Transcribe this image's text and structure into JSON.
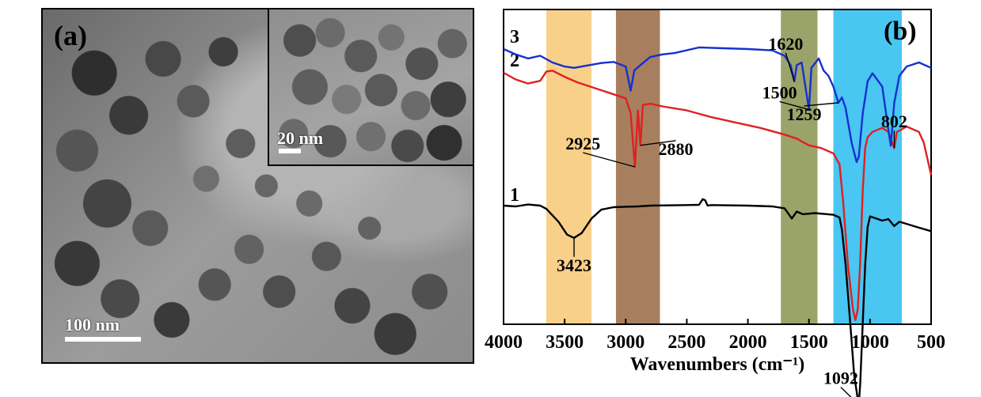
{
  "panel_a": {
    "label": "(a)",
    "scale_bar_main": "100 nm",
    "scale_bar_inset": "20 nm"
  },
  "chart_data": {
    "type": "line",
    "panel_label": "(b)",
    "title": "",
    "xlabel": "Wavenumbers (cm⁻¹)",
    "ylabel": "",
    "x_reversed": true,
    "xlim": [
      4000,
      500
    ],
    "xticks": [
      4000,
      3500,
      3000,
      2500,
      2000,
      1500,
      1000,
      500
    ],
    "xtick_labels": [
      "4000",
      "3500",
      "3000",
      "2500",
      "2000",
      "1500",
      "1000",
      "500"
    ],
    "grid": false,
    "highlight_bands": [
      {
        "from": 3650,
        "to": 3280,
        "color": "#F8D08A"
      },
      {
        "from": 3080,
        "to": 2720,
        "color": "#A87F5E"
      },
      {
        "from": 1730,
        "to": 1430,
        "color": "#9AA36A"
      },
      {
        "from": 1300,
        "to": 740,
        "color": "#49C6F2"
      }
    ],
    "series": [
      {
        "name": "1",
        "color": "#000000",
        "points": [
          [
            4000,
            0.0
          ],
          [
            3900,
            -0.3
          ],
          [
            3800,
            0.4
          ],
          [
            3700,
            0.0
          ],
          [
            3650,
            -1.2
          ],
          [
            3550,
            -6.0
          ],
          [
            3480,
            -10.8
          ],
          [
            3423,
            -12.0
          ],
          [
            3360,
            -10.2
          ],
          [
            3280,
            -4.8
          ],
          [
            3200,
            -1.5
          ],
          [
            3100,
            -0.6
          ],
          [
            3000,
            -0.4
          ],
          [
            2900,
            -0.3
          ],
          [
            2800,
            0.0
          ],
          [
            2500,
            0.2
          ],
          [
            2400,
            0.3
          ],
          [
            2370,
            2.4
          ],
          [
            2350,
            2.0
          ],
          [
            2330,
            0.0
          ],
          [
            2300,
            0.2
          ],
          [
            2000,
            0.0
          ],
          [
            1800,
            -0.3
          ],
          [
            1700,
            -1.0
          ],
          [
            1640,
            -4.8
          ],
          [
            1600,
            -2.2
          ],
          [
            1550,
            -3.2
          ],
          [
            1450,
            -2.8
          ],
          [
            1300,
            -3.4
          ],
          [
            1250,
            -4.4
          ],
          [
            1230,
            -9.0
          ],
          [
            1200,
            -22.0
          ],
          [
            1160,
            -45.0
          ],
          [
            1130,
            -63.0
          ],
          [
            1100,
            -72.0
          ],
          [
            1092,
            -74.0
          ],
          [
            1080,
            -66.0
          ],
          [
            1060,
            -44.0
          ],
          [
            1040,
            -22.0
          ],
          [
            1020,
            -8.0
          ],
          [
            1000,
            -4.0
          ],
          [
            950,
            -4.8
          ],
          [
            900,
            -5.6
          ],
          [
            850,
            -5.0
          ],
          [
            802,
            -7.6
          ],
          [
            760,
            -6.0
          ],
          [
            700,
            -6.8
          ],
          [
            600,
            -8.2
          ],
          [
            500,
            -9.5
          ]
        ],
        "curve_label_offset": [
          8,
          -6
        ]
      },
      {
        "name": "2",
        "color": "#E02020",
        "points": [
          [
            4000,
            0.0
          ],
          [
            3900,
            -2.5
          ],
          [
            3800,
            -4.0
          ],
          [
            3700,
            -3.0
          ],
          [
            3650,
            0.4
          ],
          [
            3600,
            0.8
          ],
          [
            3500,
            -1.5
          ],
          [
            3400,
            -3.5
          ],
          [
            3300,
            -5.0
          ],
          [
            3200,
            -6.5
          ],
          [
            3100,
            -8.0
          ],
          [
            3000,
            -9.5
          ],
          [
            2960,
            -15.0
          ],
          [
            2925,
            -35.0
          ],
          [
            2900,
            -14.0
          ],
          [
            2880,
            -27.0
          ],
          [
            2860,
            -12.0
          ],
          [
            2800,
            -11.5
          ],
          [
            2700,
            -12.5
          ],
          [
            2500,
            -14.0
          ],
          [
            2300,
            -16.5
          ],
          [
            2100,
            -18.5
          ],
          [
            1900,
            -20.5
          ],
          [
            1700,
            -23.0
          ],
          [
            1600,
            -24.5
          ],
          [
            1500,
            -27.0
          ],
          [
            1400,
            -28.0
          ],
          [
            1300,
            -30.0
          ],
          [
            1250,
            -34.0
          ],
          [
            1220,
            -48.0
          ],
          [
            1180,
            -72.0
          ],
          [
            1140,
            -88.0
          ],
          [
            1120,
            -92.0
          ],
          [
            1100,
            -88.0
          ],
          [
            1080,
            -70.0
          ],
          [
            1060,
            -44.0
          ],
          [
            1040,
            -28.0
          ],
          [
            1020,
            -24.0
          ],
          [
            980,
            -22.0
          ],
          [
            900,
            -20.5
          ],
          [
            850,
            -22.0
          ],
          [
            802,
            -28.0
          ],
          [
            780,
            -22.0
          ],
          [
            700,
            -20.0
          ],
          [
            600,
            -22.0
          ],
          [
            560,
            -26.0
          ],
          [
            500,
            -38.0
          ]
        ],
        "curve_label_offset": [
          8,
          -8
        ]
      },
      {
        "name": "3",
        "color": "#1530D0",
        "points": [
          [
            4000,
            0.0
          ],
          [
            3900,
            -2.0
          ],
          [
            3800,
            -3.5
          ],
          [
            3700,
            -2.5
          ],
          [
            3600,
            -5.0
          ],
          [
            3500,
            -6.5
          ],
          [
            3423,
            -7.0
          ],
          [
            3300,
            -6.0
          ],
          [
            3200,
            -5.2
          ],
          [
            3100,
            -4.8
          ],
          [
            3000,
            -6.5
          ],
          [
            2960,
            -15.5
          ],
          [
            2930,
            -8.0
          ],
          [
            2880,
            -6.0
          ],
          [
            2800,
            -3.0
          ],
          [
            2700,
            -2.0
          ],
          [
            2600,
            -1.5
          ],
          [
            2400,
            0.6
          ],
          [
            2200,
            0.3
          ],
          [
            2000,
            0.0
          ],
          [
            1800,
            -0.5
          ],
          [
            1700,
            -2.5
          ],
          [
            1650,
            -6.0
          ],
          [
            1620,
            -12.0
          ],
          [
            1600,
            -6.0
          ],
          [
            1560,
            -5.0
          ],
          [
            1500,
            -22.5
          ],
          [
            1480,
            -7.0
          ],
          [
            1420,
            -3.5
          ],
          [
            1380,
            -8.0
          ],
          [
            1340,
            -10.0
          ],
          [
            1300,
            -14.0
          ],
          [
            1259,
            -20.0
          ],
          [
            1230,
            -18.0
          ],
          [
            1200,
            -22.0
          ],
          [
            1150,
            -35.0
          ],
          [
            1110,
            -42.0
          ],
          [
            1092,
            -40.0
          ],
          [
            1060,
            -24.0
          ],
          [
            1020,
            -12.0
          ],
          [
            980,
            -9.0
          ],
          [
            900,
            -14.0
          ],
          [
            850,
            -30.0
          ],
          [
            830,
            -36.0
          ],
          [
            802,
            -20.0
          ],
          [
            760,
            -10.0
          ],
          [
            700,
            -6.5
          ],
          [
            600,
            -5.0
          ],
          [
            500,
            -7.0
          ]
        ],
        "curve_label_offset": [
          8,
          -8
        ]
      }
    ],
    "annotations": [
      {
        "text": "3423",
        "series": "1",
        "x": 3423,
        "label_x": 3423,
        "label_dy": 42
      },
      {
        "text": "2925",
        "series": "2",
        "x": 2925,
        "label_x": 3350,
        "label_dy": -22
      },
      {
        "text": "2880",
        "series": "2",
        "x": 2880,
        "label_x": 2590,
        "label_dy": 12
      },
      {
        "text": "1620",
        "series": "3",
        "x": 1620,
        "label_x": 1690,
        "label_dy": -40
      },
      {
        "text": "1500",
        "series": "3",
        "x": 1500,
        "label_x": 1740,
        "label_dy": -14
      },
      {
        "text": "1259",
        "series": "3",
        "x": 1259,
        "label_x": 1540,
        "label_dy": 22
      },
      {
        "text": "802",
        "series": "2",
        "x": 802,
        "label_x": 802,
        "label_dy": -26
      },
      {
        "text": "1092",
        "series": "1",
        "x": 1092,
        "label_x": 1240,
        "label_dy": -26
      }
    ]
  }
}
